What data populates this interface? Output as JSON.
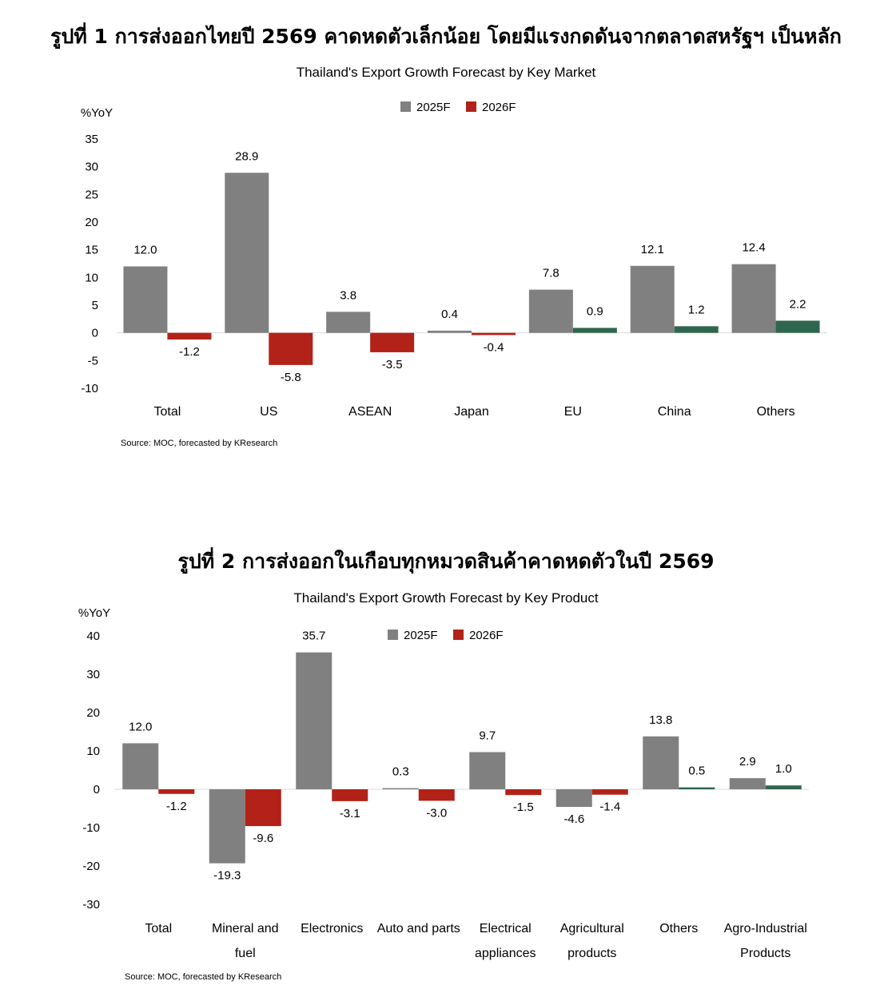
{
  "figure1": {
    "heading": "รูปที่ 1 การส่งออกไทยปี 2569 คาดหดตัวเล็กน้อย โดยมีแรงกดดันจากตลาดสหรัฐฯ เป็นหลัก"
  },
  "figure2": {
    "heading": "รูปที่ 2 การส่งออกในเกือบทุกหมวดสินค้าคาดหดตัวในปี 2569"
  },
  "colors": {
    "series_2025": "#808080",
    "series_2026_negative": "#b22218",
    "series_2026_positive": "#2f6650"
  },
  "chart_data": [
    {
      "type": "bar",
      "title": "Thailand's Export Growth Forecast by Key Market",
      "ylabel": "%YoY",
      "ylim": [
        -10,
        35
      ],
      "yticks": [
        35,
        30,
        25,
        20,
        15,
        10,
        5,
        0,
        -5,
        -10
      ],
      "grid": false,
      "legend_position": "top-center",
      "categories": [
        "Total",
        "US",
        "ASEAN",
        "Japan",
        "EU",
        "China",
        "Others"
      ],
      "series": [
        {
          "name": "2025F",
          "values": [
            12.0,
            28.9,
            3.8,
            0.4,
            7.8,
            12.1,
            12.4
          ]
        },
        {
          "name": "2026F",
          "values": [
            -1.2,
            -5.8,
            -3.5,
            -0.4,
            0.9,
            1.2,
            2.2
          ]
        }
      ],
      "source": "Source: MOC, forecasted by KResearch"
    },
    {
      "type": "bar",
      "title": "Thailand's Export Growth Forecast by Key Product",
      "ylabel": "%YoY",
      "ylim": [
        -30,
        40
      ],
      "yticks": [
        40,
        30,
        20,
        10,
        0,
        -10,
        -20,
        -30
      ],
      "grid": false,
      "legend_position": "top-center",
      "categories": [
        [
          "Total"
        ],
        [
          "Mineral and",
          "fuel"
        ],
        [
          "Electronics"
        ],
        [
          "Auto and parts"
        ],
        [
          "Electrical",
          "appliances"
        ],
        [
          "Agricultural",
          "products"
        ],
        [
          "Others"
        ],
        [
          "Agro-Industrial",
          "Products"
        ]
      ],
      "series": [
        {
          "name": "2025F",
          "values": [
            12.0,
            -19.3,
            35.7,
            0.3,
            9.7,
            -4.6,
            13.8,
            2.9
          ]
        },
        {
          "name": "2026F",
          "values": [
            -1.2,
            -9.6,
            -3.1,
            -3.0,
            -1.5,
            -1.4,
            0.5,
            1.0
          ]
        }
      ],
      "source": "Source: MOC, forecasted by KResearch"
    }
  ]
}
